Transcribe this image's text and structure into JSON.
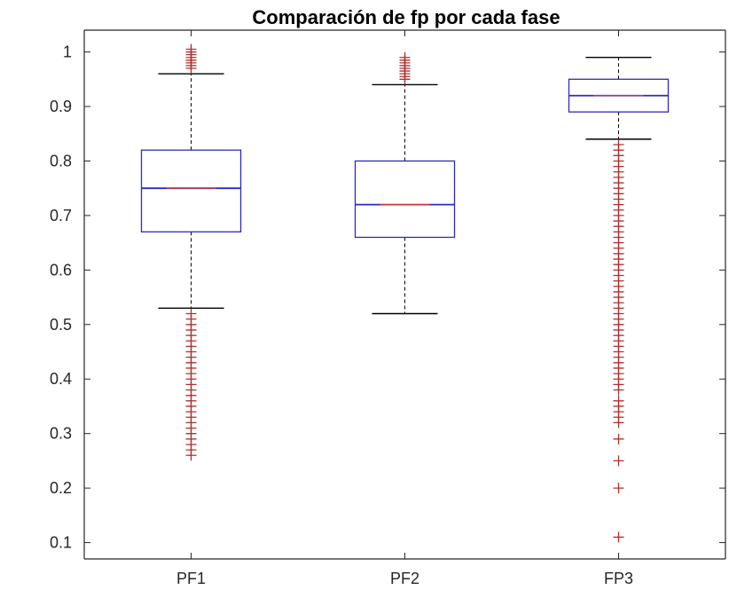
{
  "chart_data": {
    "type": "boxplot",
    "title": "Comparación de fp por cada fase",
    "xlabel": "",
    "ylabel": "",
    "ylim": [
      0.07,
      1.04
    ],
    "yticks": [
      0.1,
      0.2,
      0.3,
      0.4,
      0.5,
      0.6,
      0.7,
      0.8,
      0.9,
      1
    ],
    "ytick_labels": [
      "0.1",
      "0.2",
      "0.3",
      "0.4",
      "0.5",
      "0.6",
      "0.7",
      "0.8",
      "0.9",
      "1"
    ],
    "categories": [
      "PF1",
      "PF2",
      "FP3"
    ],
    "grid": false,
    "colors": {
      "box": "#2b2bc0",
      "median": "#d03a3a",
      "whisker": "#000000",
      "outlier": "#b03030",
      "axis": "#262626"
    },
    "boxes": [
      {
        "label": "PF1",
        "q1": 0.67,
        "median": 0.75,
        "q3": 0.82,
        "whisker_low": 0.53,
        "whisker_high": 0.96,
        "outliers": [
          0.97,
          0.975,
          0.98,
          0.985,
          0.99,
          0.995,
          1.0,
          1.005,
          0.26,
          0.27,
          0.28,
          0.29,
          0.3,
          0.31,
          0.32,
          0.33,
          0.34,
          0.35,
          0.36,
          0.37,
          0.38,
          0.39,
          0.4,
          0.41,
          0.42,
          0.43,
          0.44,
          0.45,
          0.46,
          0.47,
          0.48,
          0.49,
          0.5,
          0.51,
          0.52
        ]
      },
      {
        "label": "PF2",
        "q1": 0.66,
        "median": 0.72,
        "q3": 0.8,
        "whisker_low": 0.52,
        "whisker_high": 0.94,
        "outliers": [
          0.95,
          0.955,
          0.96,
          0.965,
          0.97,
          0.975,
          0.98,
          0.985,
          0.99
        ]
      },
      {
        "label": "FP3",
        "q1": 0.89,
        "median": 0.92,
        "q3": 0.95,
        "whisker_low": 0.84,
        "whisker_high": 0.99,
        "outliers": [
          0.11,
          0.2,
          0.25,
          0.29,
          0.32,
          0.33,
          0.34,
          0.35,
          0.36,
          0.38,
          0.39,
          0.4,
          0.41,
          0.42,
          0.43,
          0.44,
          0.45,
          0.46,
          0.47,
          0.48,
          0.49,
          0.5,
          0.51,
          0.52,
          0.53,
          0.54,
          0.55,
          0.56,
          0.57,
          0.58,
          0.59,
          0.6,
          0.61,
          0.62,
          0.63,
          0.64,
          0.65,
          0.66,
          0.67,
          0.68,
          0.69,
          0.7,
          0.71,
          0.72,
          0.73,
          0.74,
          0.75,
          0.76,
          0.77,
          0.78,
          0.79,
          0.8,
          0.81,
          0.82,
          0.83
        ]
      }
    ]
  }
}
